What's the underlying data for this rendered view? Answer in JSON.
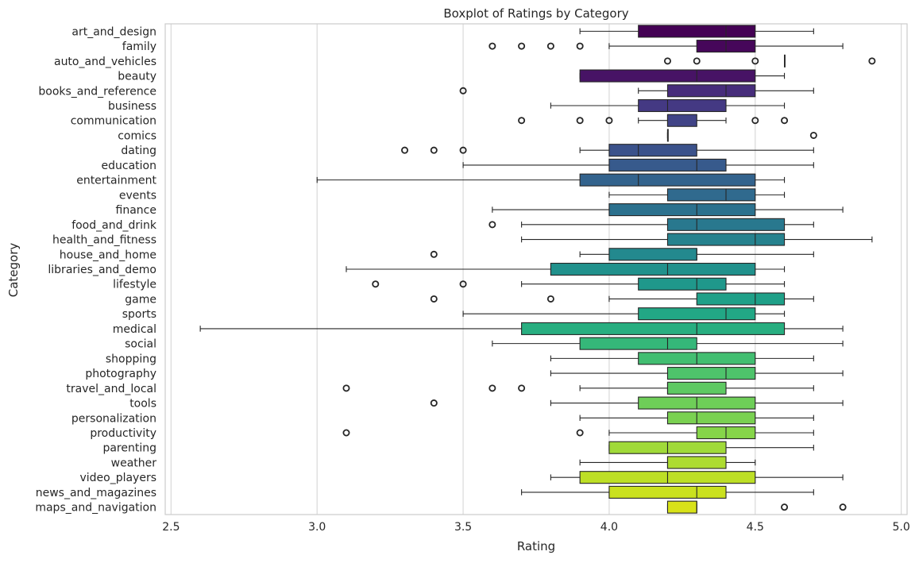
{
  "chart_data": {
    "type": "boxplot",
    "orientation": "horizontal",
    "title": "Boxplot of Ratings by Category",
    "xlabel": "Rating",
    "ylabel": "Category",
    "xlim": [
      2.48,
      5.02
    ],
    "xticks": [
      "2.5",
      "3.0",
      "3.5",
      "4.0",
      "4.5",
      "5.0"
    ],
    "xtick_values": [
      2.5,
      3.0,
      3.5,
      4.0,
      4.5,
      5.0
    ],
    "grid": "vertical",
    "palette": "viridis",
    "series": [
      {
        "category": "art_and_design",
        "whisker_low": 3.9,
        "q1": 4.1,
        "median": 4.4,
        "q3": 4.5,
        "whisker_high": 4.7,
        "outliers": [],
        "color": "#440154"
      },
      {
        "category": "family",
        "whisker_low": 4.0,
        "q1": 4.3,
        "median": 4.4,
        "q3": 4.5,
        "whisker_high": 4.8,
        "outliers": [
          3.6,
          3.7,
          3.8,
          3.9
        ],
        "color": "#46075a"
      },
      {
        "category": "auto_and_vehicles",
        "whisker_low": 4.6,
        "q1": 4.6,
        "median": 4.6,
        "q3": 4.6,
        "whisker_high": 4.6,
        "outliers": [
          4.2,
          4.3,
          4.5,
          4.9
        ],
        "color": "#470d60"
      },
      {
        "category": "beauty",
        "whisker_low": 3.9,
        "q1": 3.9,
        "median": 4.3,
        "q3": 4.5,
        "whisker_high": 4.6,
        "outliers": [],
        "color": "#471365"
      },
      {
        "category": "books_and_reference",
        "whisker_low": 4.1,
        "q1": 4.2,
        "median": 4.4,
        "q3": 4.5,
        "whisker_high": 4.7,
        "outliers": [
          3.5
        ],
        "color": "#472d7b"
      },
      {
        "category": "business",
        "whisker_low": 3.8,
        "q1": 4.1,
        "median": 4.2,
        "q3": 4.4,
        "whisker_high": 4.6,
        "outliers": [],
        "color": "#443983"
      },
      {
        "category": "communication",
        "whisker_low": 4.1,
        "q1": 4.2,
        "median": 4.2,
        "q3": 4.3,
        "whisker_high": 4.4,
        "outliers": [
          3.7,
          3.9,
          4.0,
          4.5,
          4.6
        ],
        "color": "#414487"
      },
      {
        "category": "comics",
        "whisker_low": 4.2,
        "q1": 4.2,
        "median": 4.2,
        "q3": 4.2,
        "whisker_high": 4.2,
        "outliers": [
          4.7
        ],
        "color": "#3e4c8a"
      },
      {
        "category": "dating",
        "whisker_low": 3.9,
        "q1": 4.0,
        "median": 4.1,
        "q3": 4.3,
        "whisker_high": 4.7,
        "outliers": [
          3.3,
          3.4,
          3.5
        ],
        "color": "#3b528b"
      },
      {
        "category": "education",
        "whisker_low": 3.5,
        "q1": 4.0,
        "median": 4.3,
        "q3": 4.4,
        "whisker_high": 4.7,
        "outliers": [],
        "color": "#375a8c"
      },
      {
        "category": "entertainment",
        "whisker_low": 3.0,
        "q1": 3.9,
        "median": 4.1,
        "q3": 4.5,
        "whisker_high": 4.6,
        "outliers": [],
        "color": "#33638d"
      },
      {
        "category": "events",
        "whisker_low": 4.0,
        "q1": 4.2,
        "median": 4.4,
        "q3": 4.5,
        "whisker_high": 4.6,
        "outliers": [],
        "color": "#306a8e"
      },
      {
        "category": "finance",
        "whisker_low": 3.6,
        "q1": 4.0,
        "median": 4.3,
        "q3": 4.5,
        "whisker_high": 4.8,
        "outliers": [],
        "color": "#2c718e"
      },
      {
        "category": "food_and_drink",
        "whisker_low": 3.7,
        "q1": 4.2,
        "median": 4.3,
        "q3": 4.6,
        "whisker_high": 4.7,
        "outliers": [
          3.6
        ],
        "color": "#29788e"
      },
      {
        "category": "health_and_fitness",
        "whisker_low": 3.7,
        "q1": 4.2,
        "median": 4.5,
        "q3": 4.6,
        "whisker_high": 4.9,
        "outliers": [],
        "color": "#26828e"
      },
      {
        "category": "house_and_home",
        "whisker_low": 3.9,
        "q1": 4.0,
        "median": 4.3,
        "q3": 4.3,
        "whisker_high": 4.7,
        "outliers": [
          3.4
        ],
        "color": "#23898e"
      },
      {
        "category": "libraries_and_demo",
        "whisker_low": 3.1,
        "q1": 3.8,
        "median": 4.2,
        "q3": 4.5,
        "whisker_high": 4.6,
        "outliers": [],
        "color": "#21918c"
      },
      {
        "category": "lifestyle",
        "whisker_low": 3.7,
        "q1": 4.1,
        "median": 4.3,
        "q3": 4.4,
        "whisker_high": 4.6,
        "outliers": [
          3.2,
          3.5
        ],
        "color": "#1f988b"
      },
      {
        "category": "game",
        "whisker_low": 4.0,
        "q1": 4.3,
        "median": 4.5,
        "q3": 4.6,
        "whisker_high": 4.7,
        "outliers": [
          3.4,
          3.8
        ],
        "color": "#1fa088"
      },
      {
        "category": "sports",
        "whisker_low": 3.5,
        "q1": 4.1,
        "median": 4.4,
        "q3": 4.5,
        "whisker_high": 4.6,
        "outliers": [],
        "color": "#22a785"
      },
      {
        "category": "medical",
        "whisker_low": 2.6,
        "q1": 3.7,
        "median": 4.3,
        "q3": 4.6,
        "whisker_high": 4.8,
        "outliers": [],
        "color": "#28ae80"
      },
      {
        "category": "social",
        "whisker_low": 3.6,
        "q1": 3.9,
        "median": 4.2,
        "q3": 4.3,
        "whisker_high": 4.8,
        "outliers": [],
        "color": "#35b779"
      },
      {
        "category": "shopping",
        "whisker_low": 3.8,
        "q1": 4.1,
        "median": 4.3,
        "q3": 4.5,
        "whisker_high": 4.7,
        "outliers": [],
        "color": "#42be71"
      },
      {
        "category": "photography",
        "whisker_low": 3.8,
        "q1": 4.2,
        "median": 4.4,
        "q3": 4.5,
        "whisker_high": 4.8,
        "outliers": [],
        "color": "#4ec36b"
      },
      {
        "category": "travel_and_local",
        "whisker_low": 3.9,
        "q1": 4.2,
        "median": 4.2,
        "q3": 4.4,
        "whisker_high": 4.7,
        "outliers": [
          3.1,
          3.6,
          3.7
        ],
        "color": "#5ec962"
      },
      {
        "category": "tools",
        "whisker_low": 3.8,
        "q1": 4.1,
        "median": 4.3,
        "q3": 4.5,
        "whisker_high": 4.8,
        "outliers": [
          3.4
        ],
        "color": "#6ece58"
      },
      {
        "category": "personalization",
        "whisker_low": 3.9,
        "q1": 4.2,
        "median": 4.3,
        "q3": 4.5,
        "whisker_high": 4.7,
        "outliers": [],
        "color": "#7ad151"
      },
      {
        "category": "productivity",
        "whisker_low": 4.0,
        "q1": 4.3,
        "median": 4.4,
        "q3": 4.5,
        "whisker_high": 4.7,
        "outliers": [
          3.1,
          3.9
        ],
        "color": "#86d549"
      },
      {
        "category": "parenting",
        "whisker_low": 4.0,
        "q1": 4.0,
        "median": 4.2,
        "q3": 4.4,
        "whisker_high": 4.7,
        "outliers": [],
        "color": "#a0da39"
      },
      {
        "category": "weather",
        "whisker_low": 3.9,
        "q1": 4.2,
        "median": 4.2,
        "q3": 4.4,
        "whisker_high": 4.5,
        "outliers": [],
        "color": "#addc30"
      },
      {
        "category": "video_players",
        "whisker_low": 3.8,
        "q1": 3.9,
        "median": 4.2,
        "q3": 4.5,
        "whisker_high": 4.8,
        "outliers": [],
        "color": "#bddf26"
      },
      {
        "category": "news_and_magazines",
        "whisker_low": 3.7,
        "q1": 4.0,
        "median": 4.3,
        "q3": 4.4,
        "whisker_high": 4.7,
        "outliers": [],
        "color": "#cae11f"
      },
      {
        "category": "maps_and_navigation",
        "whisker_low": 4.2,
        "q1": 4.2,
        "median": 4.3,
        "q3": 4.3,
        "whisker_high": 4.3,
        "outliers": [
          4.6,
          4.8
        ],
        "color": "#d8e219"
      }
    ]
  }
}
